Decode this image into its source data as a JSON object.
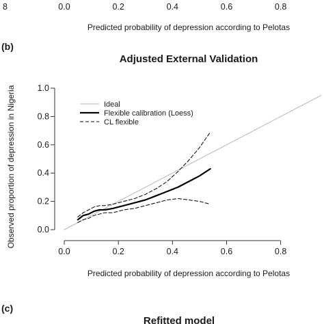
{
  "top_fragment": {
    "ticks": [
      "0.0",
      "0.2",
      "0.4",
      "0.6",
      "0.8"
    ],
    "xlabel": "Predicted probability of depression according to Pelotas"
  },
  "panel_b": {
    "label": "(b)"
  },
  "panel_c": {
    "label": "(c)",
    "title": "Refitted model"
  },
  "chart_data": {
    "type": "line",
    "title": "Adjusted External Validation",
    "xlabel": "Predicted probability of depression according to Pelotas",
    "ylabel": "Observed proportion of depression in Nigeria",
    "xlim": [
      0,
      0.95
    ],
    "ylim": [
      0,
      1.0
    ],
    "xticks": [
      0.0,
      0.2,
      0.4,
      0.6,
      0.8
    ],
    "xtick_labels": [
      "0.0",
      "0.2",
      "0.4",
      "0.6",
      "0.8"
    ],
    "yticks": [
      0.0,
      0.2,
      0.4,
      0.6,
      0.8,
      1.0
    ],
    "ytick_labels": [
      "0.0",
      "0.2",
      "0.4",
      "0.6",
      "0.8",
      "1.0"
    ],
    "grid": false,
    "legend_position": "top-left",
    "series": [
      {
        "name": "Ideal",
        "style": "solid-thin",
        "color": "#b5b5b5",
        "x": [
          0.0,
          0.95
        ],
        "y": [
          0.0,
          0.95
        ]
      },
      {
        "name": "Flexible calibration (Loess)",
        "style": "solid-thick",
        "color": "#000000",
        "x": [
          0.05,
          0.07,
          0.09,
          0.11,
          0.13,
          0.15,
          0.18,
          0.22,
          0.26,
          0.3,
          0.34,
          0.38,
          0.42,
          0.46,
          0.5,
          0.54
        ],
        "y": [
          0.07,
          0.1,
          0.11,
          0.13,
          0.14,
          0.14,
          0.15,
          0.17,
          0.19,
          0.21,
          0.24,
          0.27,
          0.3,
          0.34,
          0.38,
          0.43
        ]
      },
      {
        "name": "CL flexible",
        "style": "dashed",
        "color": "#000000",
        "x": [
          0.05,
          0.07,
          0.09,
          0.11,
          0.13,
          0.15,
          0.18,
          0.22,
          0.26,
          0.3,
          0.34,
          0.38,
          0.42,
          0.46,
          0.5,
          0.54
        ],
        "y": [
          0.09,
          0.12,
          0.14,
          0.16,
          0.17,
          0.17,
          0.18,
          0.2,
          0.22,
          0.25,
          0.29,
          0.34,
          0.41,
          0.49,
          0.58,
          0.69
        ]
      },
      {
        "name": "",
        "style": "dashed",
        "color": "#000000",
        "x": [
          0.05,
          0.07,
          0.09,
          0.11,
          0.13,
          0.15,
          0.18,
          0.22,
          0.26,
          0.3,
          0.34,
          0.38,
          0.42,
          0.46,
          0.5,
          0.54
        ],
        "y": [
          0.05,
          0.07,
          0.08,
          0.1,
          0.11,
          0.12,
          0.12,
          0.14,
          0.15,
          0.17,
          0.19,
          0.21,
          0.22,
          0.21,
          0.2,
          0.18
        ]
      }
    ]
  }
}
